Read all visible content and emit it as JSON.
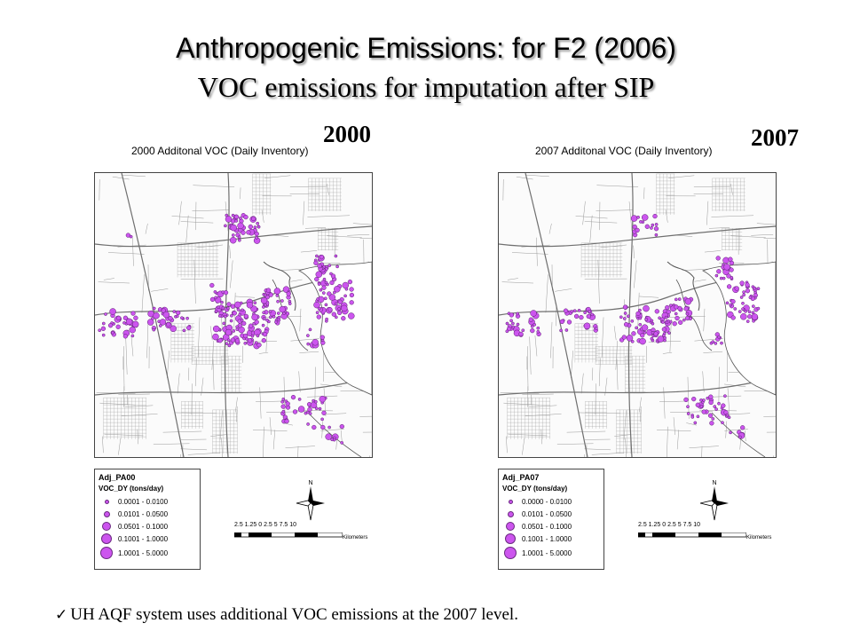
{
  "title": "Anthropogenic Emissions: for F2 (2006)",
  "subtitle": "VOC emissions for imputation after SIP",
  "panels": [
    {
      "year": "2000",
      "map_title": "2000 Additonal VOC (Daily Inventory)",
      "legend_title": "Adj_PA00",
      "legend_field": "VOC_DY  (tons/day)",
      "legend_items": [
        "0.0001 - 0.0100",
        "0.0101 - 0.0500",
        "0.0501 - 0.1000",
        "0.1001 - 1.0000",
        "1.0001 - 5.0000"
      ],
      "north_label": "N",
      "scale_labels": "2.5 1.25  0       2.5       5       7.5     10",
      "scale_unit": "Kilometers"
    },
    {
      "year": "2007",
      "map_title": "2007 Additonal VOC (Daily Inventory)",
      "legend_title": "Adj_PA07",
      "legend_field": "VOC_DY  (tons/day)",
      "legend_items": [
        "0.0000 - 0.0100",
        "0.0101 - 0.0500",
        "0.0501 - 0.1000",
        "0.1001 - 1.0000",
        "1.0001 - 5.0000"
      ],
      "north_label": "N",
      "scale_labels": "2.5 1.25  0       2.5       5       7.5     10",
      "scale_unit": "Kilometers"
    }
  ],
  "note": "UH AQF system uses additional VOC emissions at the 2007 level.",
  "colors": {
    "marker_fill": "#cc55ee",
    "marker_stroke": "#5a1f70",
    "roads": "#9a9a9a",
    "water": "#ffffff"
  }
}
